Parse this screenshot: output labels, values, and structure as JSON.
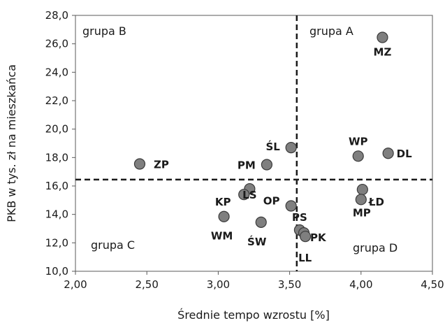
{
  "chart_data": {
    "type": "scatter",
    "xlabel": "Średnie tempo wzrostu [%]",
    "ylabel": "PKB w tys. zł na mieszkańca",
    "xlim": [
      2.0,
      4.5
    ],
    "ylim": [
      10.0,
      28.0
    ],
    "x_ticks": [
      2.0,
      2.5,
      3.0,
      3.5,
      4.0,
      4.5
    ],
    "x_tick_labels": [
      "2,00",
      "2,50",
      "3,00",
      "3,50",
      "4,00",
      "4,50"
    ],
    "y_ticks": [
      10,
      12,
      14,
      16,
      18,
      20,
      22,
      24,
      26,
      28
    ],
    "y_tick_labels": [
      "10,0",
      "12,0",
      "14,0",
      "16,0",
      "18,0",
      "20,0",
      "22,0",
      "24,0",
      "26,0",
      "28,0"
    ],
    "grid": false,
    "divider_lines": {
      "vertical_x": 3.55,
      "horizontal_y": 16.45
    },
    "group_labels": {
      "top_left": "grupa B",
      "top_right": "grupa A",
      "bottom_left": "grupa C",
      "bottom_right": "grupa D"
    },
    "marker_color": "#7f7f7f",
    "points": [
      {
        "label": "MZ",
        "x": 4.15,
        "y": 26.45
      },
      {
        "label": "WP",
        "x": 3.98,
        "y": 18.1
      },
      {
        "label": "DL",
        "x": 4.19,
        "y": 18.3
      },
      {
        "label": "ŚL",
        "x": 3.51,
        "y": 18.7
      },
      {
        "label": "PM",
        "x": 3.34,
        "y": 17.5
      },
      {
        "label": "ZP",
        "x": 2.45,
        "y": 17.55
      },
      {
        "label": "ŁD",
        "x": 4.01,
        "y": 15.75
      },
      {
        "label": "MP",
        "x": 4.0,
        "y": 15.05
      },
      {
        "label": "LS",
        "x": 3.22,
        "y": 15.8
      },
      {
        "label": "KP",
        "x": 3.18,
        "y": 15.4
      },
      {
        "label": "OP",
        "x": 3.51,
        "y": 14.6
      },
      {
        "label": "WM",
        "x": 3.04,
        "y": 13.85
      },
      {
        "label": "ŚW",
        "x": 3.3,
        "y": 13.45
      },
      {
        "label": "PS",
        "x": 3.57,
        "y": 12.9
      },
      {
        "label": "PK",
        "x": 3.6,
        "y": 12.7
      },
      {
        "label": "LL",
        "x": 3.61,
        "y": 12.45
      }
    ]
  }
}
